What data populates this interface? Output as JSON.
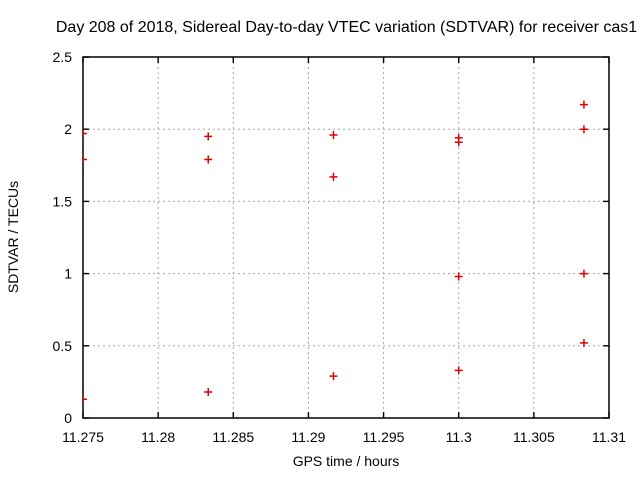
{
  "chart_data": {
    "type": "scatter",
    "title": "Day 208 of 2018, Sidereal Day-to-day VTEC variation (SDTVAR) for receiver cas1",
    "xlabel": "GPS time / hours",
    "ylabel": "SDTVAR / TECUs",
    "xlim": [
      11.275,
      11.31
    ],
    "ylim": [
      0,
      2.5
    ],
    "grid": true,
    "legend": "none",
    "xticks": [
      {
        "value": 11.275,
        "label": "11.275"
      },
      {
        "value": 11.28,
        "label": "11.28"
      },
      {
        "value": 11.285,
        "label": "11.285"
      },
      {
        "value": 11.29,
        "label": "11.29"
      },
      {
        "value": 11.295,
        "label": "11.295"
      },
      {
        "value": 11.3,
        "label": "11.3"
      },
      {
        "value": 11.305,
        "label": "11.305"
      },
      {
        "value": 11.31,
        "label": "11.31"
      }
    ],
    "yticks": [
      {
        "value": 0,
        "label": "0"
      },
      {
        "value": 0.5,
        "label": "0.5"
      },
      {
        "value": 1,
        "label": "1"
      },
      {
        "value": 1.5,
        "label": "1.5"
      },
      {
        "value": 2,
        "label": "2"
      },
      {
        "value": 2.5,
        "label": "2.5"
      }
    ],
    "series": [
      {
        "name": "SDTVAR",
        "marker": "plus",
        "points": [
          [
            11.275,
            1.97
          ],
          [
            11.275,
            1.79
          ],
          [
            11.275,
            0.13
          ],
          [
            11.283333,
            1.95
          ],
          [
            11.283333,
            1.79
          ],
          [
            11.283333,
            0.18
          ],
          [
            11.291667,
            1.96
          ],
          [
            11.291667,
            1.67
          ],
          [
            11.291667,
            0.29
          ],
          [
            11.3,
            1.94
          ],
          [
            11.3,
            1.91
          ],
          [
            11.3,
            0.98
          ],
          [
            11.3,
            0.33
          ],
          [
            11.308333,
            2.17
          ],
          [
            11.308333,
            2.0
          ],
          [
            11.308333,
            1.0
          ],
          [
            11.308333,
            0.52
          ]
        ]
      }
    ],
    "colors": {
      "marker": "#e00000",
      "axis": "#000000",
      "grid": "#a8a8a8",
      "background": "#ffffff",
      "text": "#000000"
    }
  }
}
